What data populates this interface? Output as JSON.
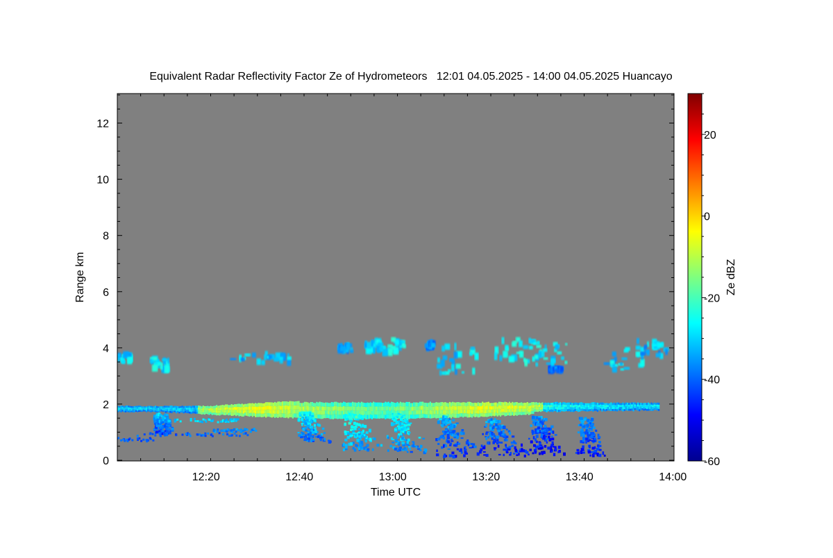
{
  "chart_data": {
    "type": "heatmap",
    "title": "Equivalent Radar Reflectivity Factor Ze of Hydrometeors   12:01 04.05.2025 - 14:00 04.05.2025 Huancayo",
    "xlabel": "Time UTC",
    "ylabel": "Range km",
    "x_start": "12:01",
    "x_end": "14:00",
    "x_ticks": [
      "12:20",
      "12:40",
      "13:00",
      "13:20",
      "13:40",
      "14:00"
    ],
    "y_ticks": [
      "0",
      "2",
      "4",
      "6",
      "8",
      "10",
      "12"
    ],
    "ylim": [
      0,
      13
    ],
    "background_color": "#808080",
    "colorbar": {
      "label": "Ze dBZ",
      "range": [
        -60,
        30
      ],
      "ticks": [
        "-60",
        "-40",
        "-20",
        "0",
        "20"
      ],
      "colormap": "jet"
    },
    "features": [
      {
        "name": "main layer",
        "t_start": "12:01",
        "t_end": "13:57",
        "range_km": [
          1.4,
          2.3
        ]
      },
      {
        "name": "upper cloud fragments",
        "t_start": "12:01",
        "t_end": "13:43",
        "range_km": [
          3.1,
          4.4
        ]
      },
      {
        "name": "precipitation streaks",
        "t_start": "12:41",
        "t_end": "13:45",
        "range_km": [
          0.1,
          1.8
        ]
      },
      {
        "name": "low echoes",
        "t_start": "12:01",
        "t_end": "12:31",
        "range_km": [
          0.6,
          1.2
        ]
      }
    ]
  }
}
